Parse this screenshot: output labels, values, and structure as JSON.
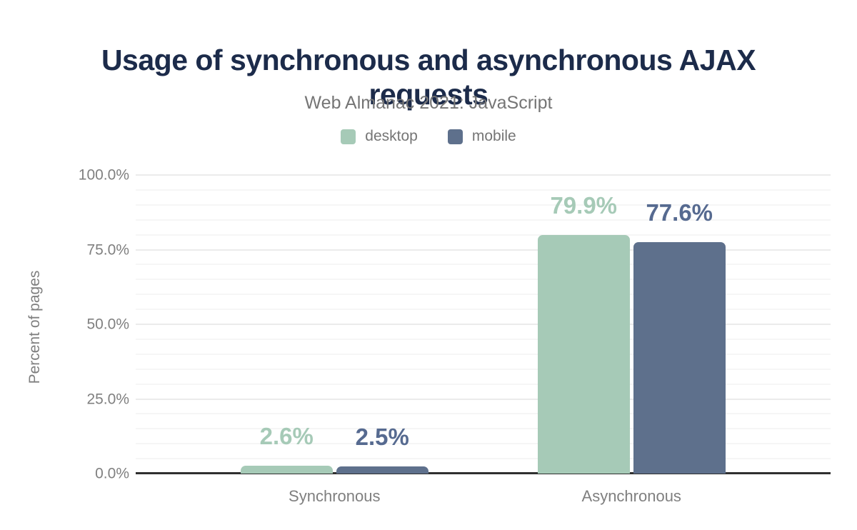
{
  "figure": {
    "title": "Usage of synchronous and asynchronous AJAX requests",
    "subtitle": "Web Almanac 2021: JavaScript"
  },
  "colors": {
    "title_text": "#1c2b4a",
    "subtitle_text": "#757575",
    "tick_text": "#808080",
    "axis_line": "#2f2f2f",
    "grid_major": "#ebebeb",
    "grid_minor": "#f6f6f6",
    "desktop": "#a6cab7",
    "mobile": "#5e708c",
    "desktop_value_label": "#a6cab7",
    "mobile_value_label": "#566a90"
  },
  "chart_data": {
    "type": "bar",
    "title": "Usage of synchronous and asynchronous AJAX requests",
    "subtitle": "Web Almanac 2021: JavaScript",
    "categories": [
      "Synchronous",
      "Asynchronous"
    ],
    "series": [
      {
        "name": "desktop",
        "values": [
          2.6,
          79.9
        ],
        "value_labels": [
          "2.6%",
          "79.9%"
        ],
        "color": "#a6cab7",
        "label_color": "#a6cab7"
      },
      {
        "name": "mobile",
        "values": [
          2.5,
          77.6
        ],
        "value_labels": [
          "2.5%",
          "77.6%"
        ],
        "color": "#5e708c",
        "label_color": "#566a90"
      }
    ],
    "xlabel": "",
    "ylabel": "Percent of pages",
    "ylim": [
      0,
      100
    ],
    "yticks": [
      {
        "value": 0,
        "label": "0.0%"
      },
      {
        "value": 25,
        "label": "25.0%"
      },
      {
        "value": 50,
        "label": "50.0%"
      },
      {
        "value": 75,
        "label": "75.0%"
      },
      {
        "value": 100,
        "label": "100.0%"
      }
    ],
    "minor_grid_step": 5,
    "grid": "horizontal major+minor",
    "legend_position": "top"
  }
}
